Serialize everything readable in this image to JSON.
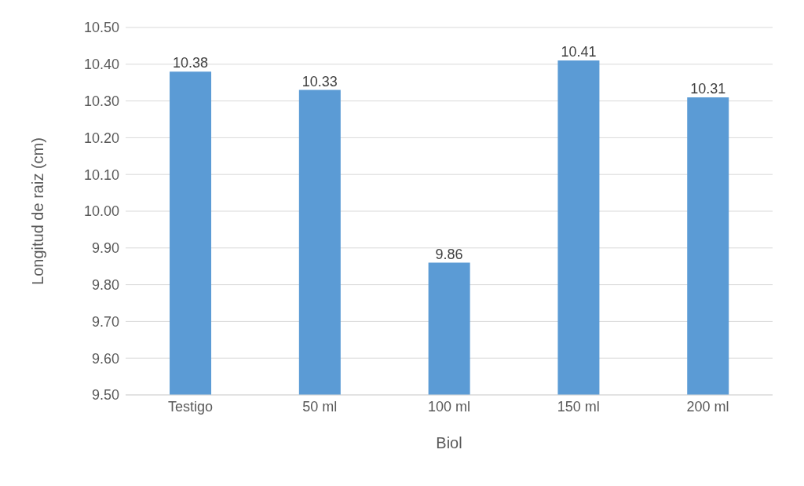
{
  "chart_data": {
    "type": "bar",
    "xlabel": "Biol",
    "ylabel": "Longitud de raiz (cm)",
    "categories": [
      "Testigo",
      "50 ml",
      "100 ml",
      "150 ml",
      "200 ml"
    ],
    "values": [
      10.38,
      10.33,
      9.86,
      10.41,
      10.31
    ],
    "color": "#5b9bd5",
    "ylim": [
      9.5,
      10.5
    ],
    "yticks": [
      {
        "value": 9.5,
        "label": "9.50"
      },
      {
        "value": 9.6,
        "label": "9.60"
      },
      {
        "value": 9.7,
        "label": "9.70"
      },
      {
        "value": 9.8,
        "label": "9.80"
      },
      {
        "value": 9.9,
        "label": "9.90"
      },
      {
        "value": 10.0,
        "label": "10.00"
      },
      {
        "value": 10.1,
        "label": "10.10"
      },
      {
        "value": 10.2,
        "label": "10.20"
      },
      {
        "value": 10.3,
        "label": "10.30"
      },
      {
        "value": 10.4,
        "label": "10.40"
      },
      {
        "value": 10.5,
        "label": "10.50"
      }
    ],
    "grid": "y",
    "data_labels": true
  }
}
